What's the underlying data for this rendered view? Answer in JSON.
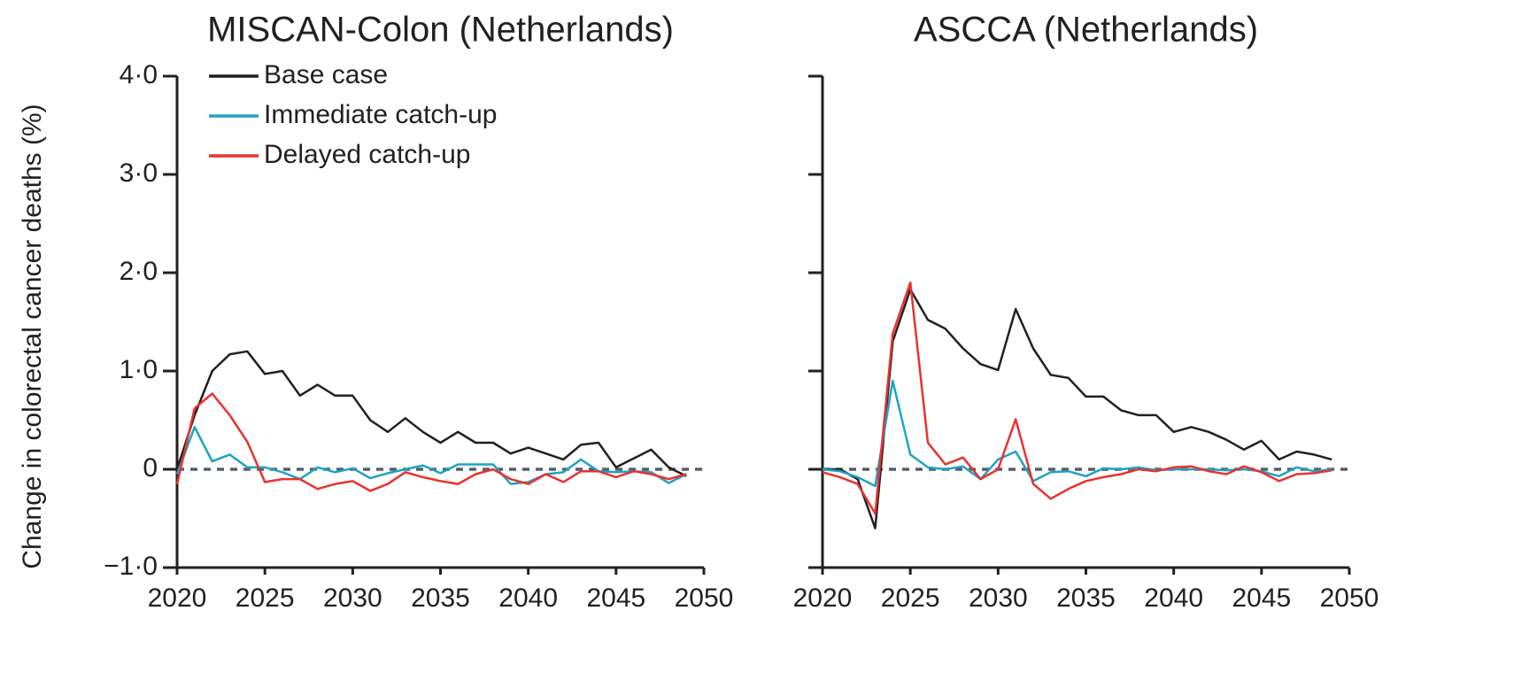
{
  "chart_data": [
    {
      "type": "line",
      "title": "MISCAN-Colon (Netherlands)",
      "ylabel": "Change in colorectal cancer deaths (%)",
      "legend": "top-left",
      "x": [
        2020,
        2021,
        2022,
        2023,
        2024,
        2025,
        2026,
        2027,
        2028,
        2029,
        2030,
        2031,
        2032,
        2033,
        2034,
        2035,
        2036,
        2037,
        2038,
        2039,
        2040,
        2041,
        2042,
        2043,
        2044,
        2045,
        2046,
        2047,
        2048,
        2049
      ],
      "series": [
        {
          "name": "Base case",
          "color": "#231f20",
          "values": [
            0.0,
            0.55,
            1.0,
            1.17,
            1.2,
            0.97,
            1.0,
            0.75,
            0.86,
            0.75,
            0.75,
            0.5,
            0.38,
            0.52,
            0.38,
            0.27,
            0.38,
            0.27,
            0.27,
            0.16,
            0.22,
            0.16,
            0.1,
            0.25,
            0.27,
            0.02,
            0.11,
            0.2,
            0.02,
            -0.07
          ]
        },
        {
          "name": "Immediate catch-up",
          "color": "#1fa3c6",
          "values": [
            -0.05,
            0.43,
            0.08,
            0.15,
            0.02,
            0.02,
            -0.03,
            -0.1,
            0.02,
            -0.03,
            0.01,
            -0.09,
            -0.04,
            0.0,
            0.04,
            -0.04,
            0.05,
            0.05,
            0.05,
            -0.15,
            -0.13,
            -0.05,
            -0.03,
            0.1,
            -0.02,
            -0.03,
            -0.02,
            -0.03,
            -0.14,
            -0.05
          ]
        },
        {
          "name": "Delayed catch-up",
          "color": "#e8322d",
          "values": [
            -0.15,
            0.62,
            0.77,
            0.55,
            0.28,
            -0.13,
            -0.1,
            -0.1,
            -0.2,
            -0.15,
            -0.12,
            -0.22,
            -0.15,
            -0.03,
            -0.08,
            -0.12,
            -0.15,
            -0.05,
            0.0,
            -0.1,
            -0.15,
            -0.05,
            -0.13,
            -0.02,
            -0.02,
            -0.08,
            -0.02,
            -0.05,
            -0.1,
            -0.05
          ]
        }
      ],
      "xlim": [
        2020,
        2050
      ],
      "xticks": [
        2020,
        2025,
        2030,
        2035,
        2040,
        2045,
        2050
      ],
      "ylim": [
        -1,
        4
      ],
      "yticks": [
        {
          "value": -1,
          "label": "−1·0"
        },
        {
          "value": 0,
          "label": "0"
        },
        {
          "value": 1,
          "label": "1·0"
        },
        {
          "value": 2,
          "label": "2·0"
        },
        {
          "value": 3,
          "label": "3·0"
        },
        {
          "value": 4,
          "label": "4·0"
        }
      ]
    },
    {
      "type": "line",
      "title": "ASCCA (Netherlands)",
      "x": [
        2020,
        2021,
        2022,
        2023,
        2024,
        2025,
        2026,
        2027,
        2028,
        2029,
        2030,
        2031,
        2032,
        2033,
        2034,
        2035,
        2036,
        2037,
        2038,
        2039,
        2040,
        2041,
        2042,
        2043,
        2044,
        2045,
        2046,
        2047,
        2048,
        2049
      ],
      "series": [
        {
          "color": "#231f20",
          "values": [
            0.0,
            0.0,
            -0.1,
            -0.6,
            1.3,
            1.83,
            1.52,
            1.43,
            1.23,
            1.07,
            1.01,
            1.63,
            1.23,
            0.96,
            0.93,
            0.74,
            0.74,
            0.6,
            0.55,
            0.55,
            0.38,
            0.43,
            0.38,
            0.3,
            0.2,
            0.29,
            0.1,
            0.18,
            0.15,
            0.1
          ]
        },
        {
          "color": "#1fa3c6",
          "values": [
            0.0,
            -0.02,
            -0.08,
            -0.17,
            0.9,
            0.15,
            0.02,
            0.0,
            0.03,
            -0.1,
            0.1,
            0.18,
            -0.12,
            -0.03,
            -0.02,
            -0.07,
            0.01,
            0.0,
            0.02,
            -0.01,
            0.0,
            0.0,
            0.0,
            -0.01,
            0.0,
            -0.02,
            -0.07,
            0.02,
            -0.02,
            0.0
          ]
        },
        {
          "color": "#e8322d",
          "values": [
            -0.03,
            -0.08,
            -0.15,
            -0.45,
            1.38,
            1.9,
            0.27,
            0.05,
            0.12,
            -0.1,
            0.0,
            0.51,
            -0.15,
            -0.3,
            -0.2,
            -0.12,
            -0.08,
            -0.05,
            0.0,
            -0.02,
            0.02,
            0.03,
            -0.02,
            -0.05,
            0.03,
            -0.03,
            -0.12,
            -0.05,
            -0.04,
            -0.01
          ]
        }
      ],
      "xlim": [
        2020,
        2050
      ],
      "xticks": [
        2020,
        2025,
        2030,
        2035,
        2040,
        2045,
        2050
      ],
      "ylim": [
        -1,
        4
      ]
    }
  ]
}
